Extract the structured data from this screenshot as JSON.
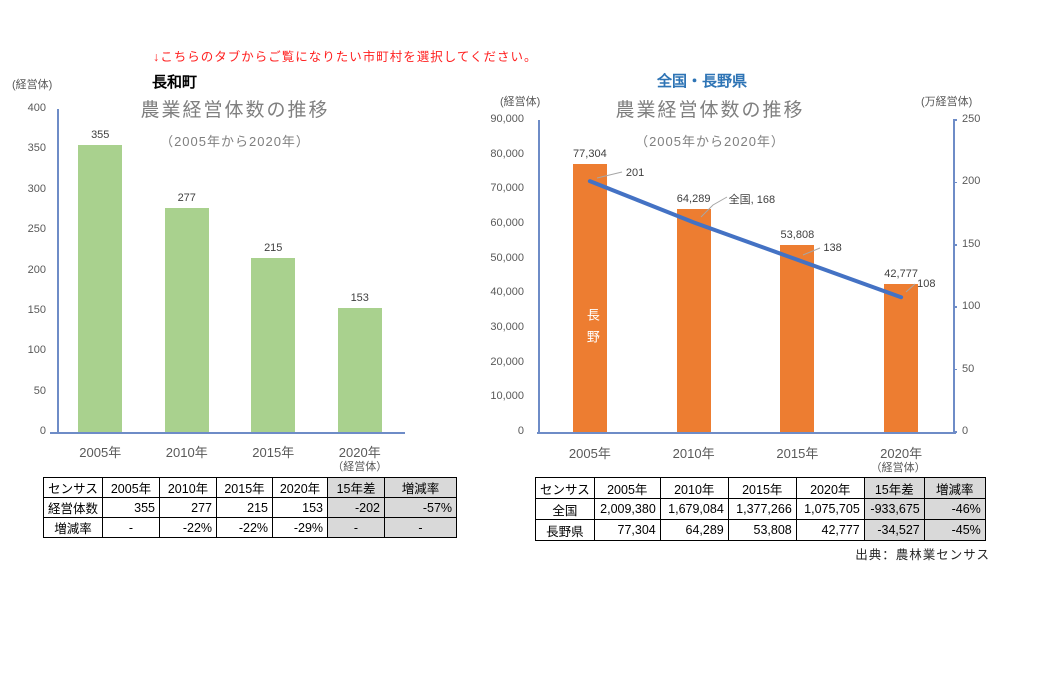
{
  "instruction": "↓こちらのタブからご覧になりたい市町村を選択してください。",
  "source_note": "出典：農林業センサス",
  "colors": {
    "bar_green": "#A9D18E",
    "bar_orange": "#ED7D31",
    "line_blue": "#4472C4",
    "axis_blue": "#6E8CC7",
    "title_gray": "#7F7F7F",
    "region_blue": "#2E74B5",
    "negative_red": "#FF0000",
    "table_header_gray": "#D9D9D9"
  },
  "chart_data": [
    {
      "type": "bar",
      "region_label": "長和町",
      "title": "農業経営体数の推移",
      "subtitle": "（2005年から2020年）",
      "axis_unit": "(経営体)",
      "x_unit_note": "（経営体）",
      "categories": [
        "2005年",
        "2010年",
        "2015年",
        "2020年"
      ],
      "values": [
        355,
        277,
        215,
        153
      ],
      "value_labels": [
        "355",
        "277",
        "215",
        "153"
      ],
      "ylim": [
        0,
        400
      ],
      "ytick_step": 50,
      "bar_color": "#A9D18E",
      "grid": false,
      "legend": "none"
    },
    {
      "type": "bar-line",
      "region_label": "全国・長野県",
      "title": "農業経営体数の推移",
      "subtitle": "（2005年から2020年）",
      "left_axis_unit": "(経営体)",
      "right_axis_unit": "(万経営体)",
      "x_unit_note": "（経営体）",
      "categories": [
        "2005年",
        "2010年",
        "2015年",
        "2020年"
      ],
      "left_ylim": [
        0,
        90000
      ],
      "left_ytick_step": 10000,
      "right_ylim": [
        0,
        250
      ],
      "right_ytick_step": 50,
      "series": [
        {
          "name": "長野",
          "type": "bar",
          "axis": "left",
          "values": [
            77304,
            64289,
            53808,
            42777
          ],
          "value_labels": [
            "77,304",
            "64,289",
            "53,808",
            "42,777"
          ],
          "color": "#ED7D31",
          "in_bar_label": "長野"
        },
        {
          "name": "全国",
          "type": "line",
          "axis": "right",
          "values": [
            201,
            168,
            138,
            108
          ],
          "point_labels": [
            "201",
            "全国, 168",
            "138",
            "108"
          ],
          "color": "#4472C4"
        }
      ],
      "grid": false,
      "legend": "none"
    }
  ],
  "tables": [
    {
      "name": "nagawa-census-table",
      "headers": [
        "センサス",
        "2005年",
        "2010年",
        "2015年",
        "2020年",
        "15年差",
        "増減率"
      ],
      "rows": [
        [
          "経営体数",
          "355",
          "277",
          "215",
          "153",
          {
            "t": "-202",
            "red": true
          },
          {
            "t": "-57%",
            "bold": true
          }
        ],
        [
          "増減率",
          "-",
          "-22%",
          "-22%",
          "-29%",
          "-",
          "-"
        ]
      ]
    },
    {
      "name": "national-nagano-census-table",
      "headers": [
        "センサス",
        "2005年",
        "2010年",
        "2015年",
        "2020年",
        "15年差",
        "増減率"
      ],
      "rows": [
        [
          "全国",
          "2,009,380",
          "1,679,084",
          "1,377,266",
          "1,075,705",
          {
            "t": "-933,675",
            "red": true
          },
          {
            "t": "-46%",
            "bold": true
          }
        ],
        [
          "長野県",
          "77,304",
          "64,289",
          "53,808",
          "42,777",
          {
            "t": "-34,527",
            "red": true
          },
          {
            "t": "-45%",
            "bold": true
          }
        ]
      ]
    }
  ]
}
